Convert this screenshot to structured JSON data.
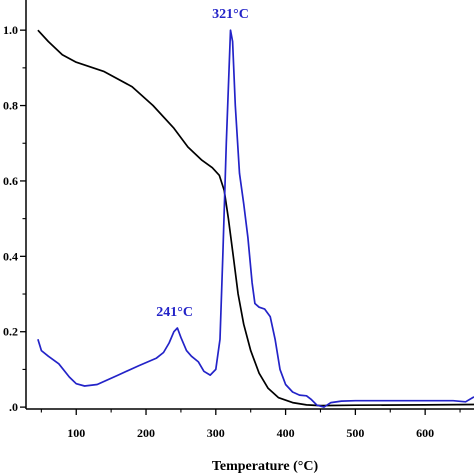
{
  "chart_data": {
    "type": "line",
    "title": "",
    "xlabel": "Temperature (°C)",
    "ylabel": "",
    "xlim": [
      28,
      670
    ],
    "ylim": [
      -0.005,
      1.08
    ],
    "xticks": [
      0,
      100,
      200,
      300,
      400,
      500,
      600
    ],
    "xticks_minor": [
      50,
      150,
      250,
      350,
      450,
      550,
      650
    ],
    "yticks": [
      0.0,
      0.2,
      0.4,
      0.6,
      0.8,
      1.0
    ],
    "yticks_minor": [
      0.1,
      0.3,
      0.5,
      0.7,
      0.9
    ],
    "ytick_labels": [
      ".0",
      "0.2",
      "0.4",
      "0.6",
      "0.8",
      "1.0"
    ],
    "grid": false,
    "series": [
      {
        "color": "#000000",
        "points": [
          [
            45,
            1.0
          ],
          [
            60,
            0.97
          ],
          [
            80,
            0.935
          ],
          [
            100,
            0.915
          ],
          [
            140,
            0.89
          ],
          [
            180,
            0.85
          ],
          [
            210,
            0.8
          ],
          [
            240,
            0.74
          ],
          [
            260,
            0.69
          ],
          [
            280,
            0.655
          ],
          [
            295,
            0.635
          ],
          [
            305,
            0.615
          ],
          [
            312,
            0.575
          ],
          [
            318,
            0.5
          ],
          [
            325,
            0.4
          ],
          [
            332,
            0.3
          ],
          [
            340,
            0.22
          ],
          [
            350,
            0.15
          ],
          [
            362,
            0.09
          ],
          [
            375,
            0.05
          ],
          [
            390,
            0.025
          ],
          [
            410,
            0.012
          ],
          [
            430,
            0.006
          ],
          [
            450,
            0.004
          ],
          [
            500,
            0.005
          ],
          [
            600,
            0.006
          ],
          [
            670,
            0.007
          ]
        ]
      },
      {
        "color": "#2323c8",
        "points": [
          [
            45,
            0.18
          ],
          [
            50,
            0.15
          ],
          [
            60,
            0.135
          ],
          [
            75,
            0.115
          ],
          [
            90,
            0.08
          ],
          [
            100,
            0.062
          ],
          [
            112,
            0.056
          ],
          [
            130,
            0.06
          ],
          [
            160,
            0.085
          ],
          [
            190,
            0.11
          ],
          [
            215,
            0.13
          ],
          [
            225,
            0.145
          ],
          [
            233,
            0.17
          ],
          [
            240,
            0.2
          ],
          [
            245,
            0.21
          ],
          [
            250,
            0.185
          ],
          [
            258,
            0.15
          ],
          [
            265,
            0.135
          ],
          [
            275,
            0.12
          ],
          [
            283,
            0.095
          ],
          [
            292,
            0.085
          ],
          [
            300,
            0.1
          ],
          [
            306,
            0.18
          ],
          [
            310,
            0.4
          ],
          [
            315,
            0.7
          ],
          [
            319,
            0.9
          ],
          [
            321,
            1.0
          ],
          [
            324,
            0.97
          ],
          [
            328,
            0.8
          ],
          [
            334,
            0.62
          ],
          [
            340,
            0.54
          ],
          [
            346,
            0.45
          ],
          [
            352,
            0.33
          ],
          [
            356,
            0.275
          ],
          [
            362,
            0.265
          ],
          [
            370,
            0.26
          ],
          [
            378,
            0.24
          ],
          [
            385,
            0.18
          ],
          [
            392,
            0.1
          ],
          [
            400,
            0.06
          ],
          [
            410,
            0.04
          ],
          [
            420,
            0.032
          ],
          [
            430,
            0.03
          ],
          [
            437,
            0.02
          ],
          [
            445,
            0.005
          ],
          [
            455,
            0.0
          ],
          [
            465,
            0.012
          ],
          [
            480,
            0.016
          ],
          [
            500,
            0.017
          ],
          [
            550,
            0.017
          ],
          [
            600,
            0.017
          ],
          [
            640,
            0.017
          ],
          [
            658,
            0.014
          ],
          [
            670,
            0.027
          ]
        ]
      }
    ],
    "annotations": [
      {
        "text": "321°C",
        "x": 321,
        "y": 1.0
      },
      {
        "text": "241°C",
        "x": 241,
        "y": 0.21
      }
    ]
  }
}
